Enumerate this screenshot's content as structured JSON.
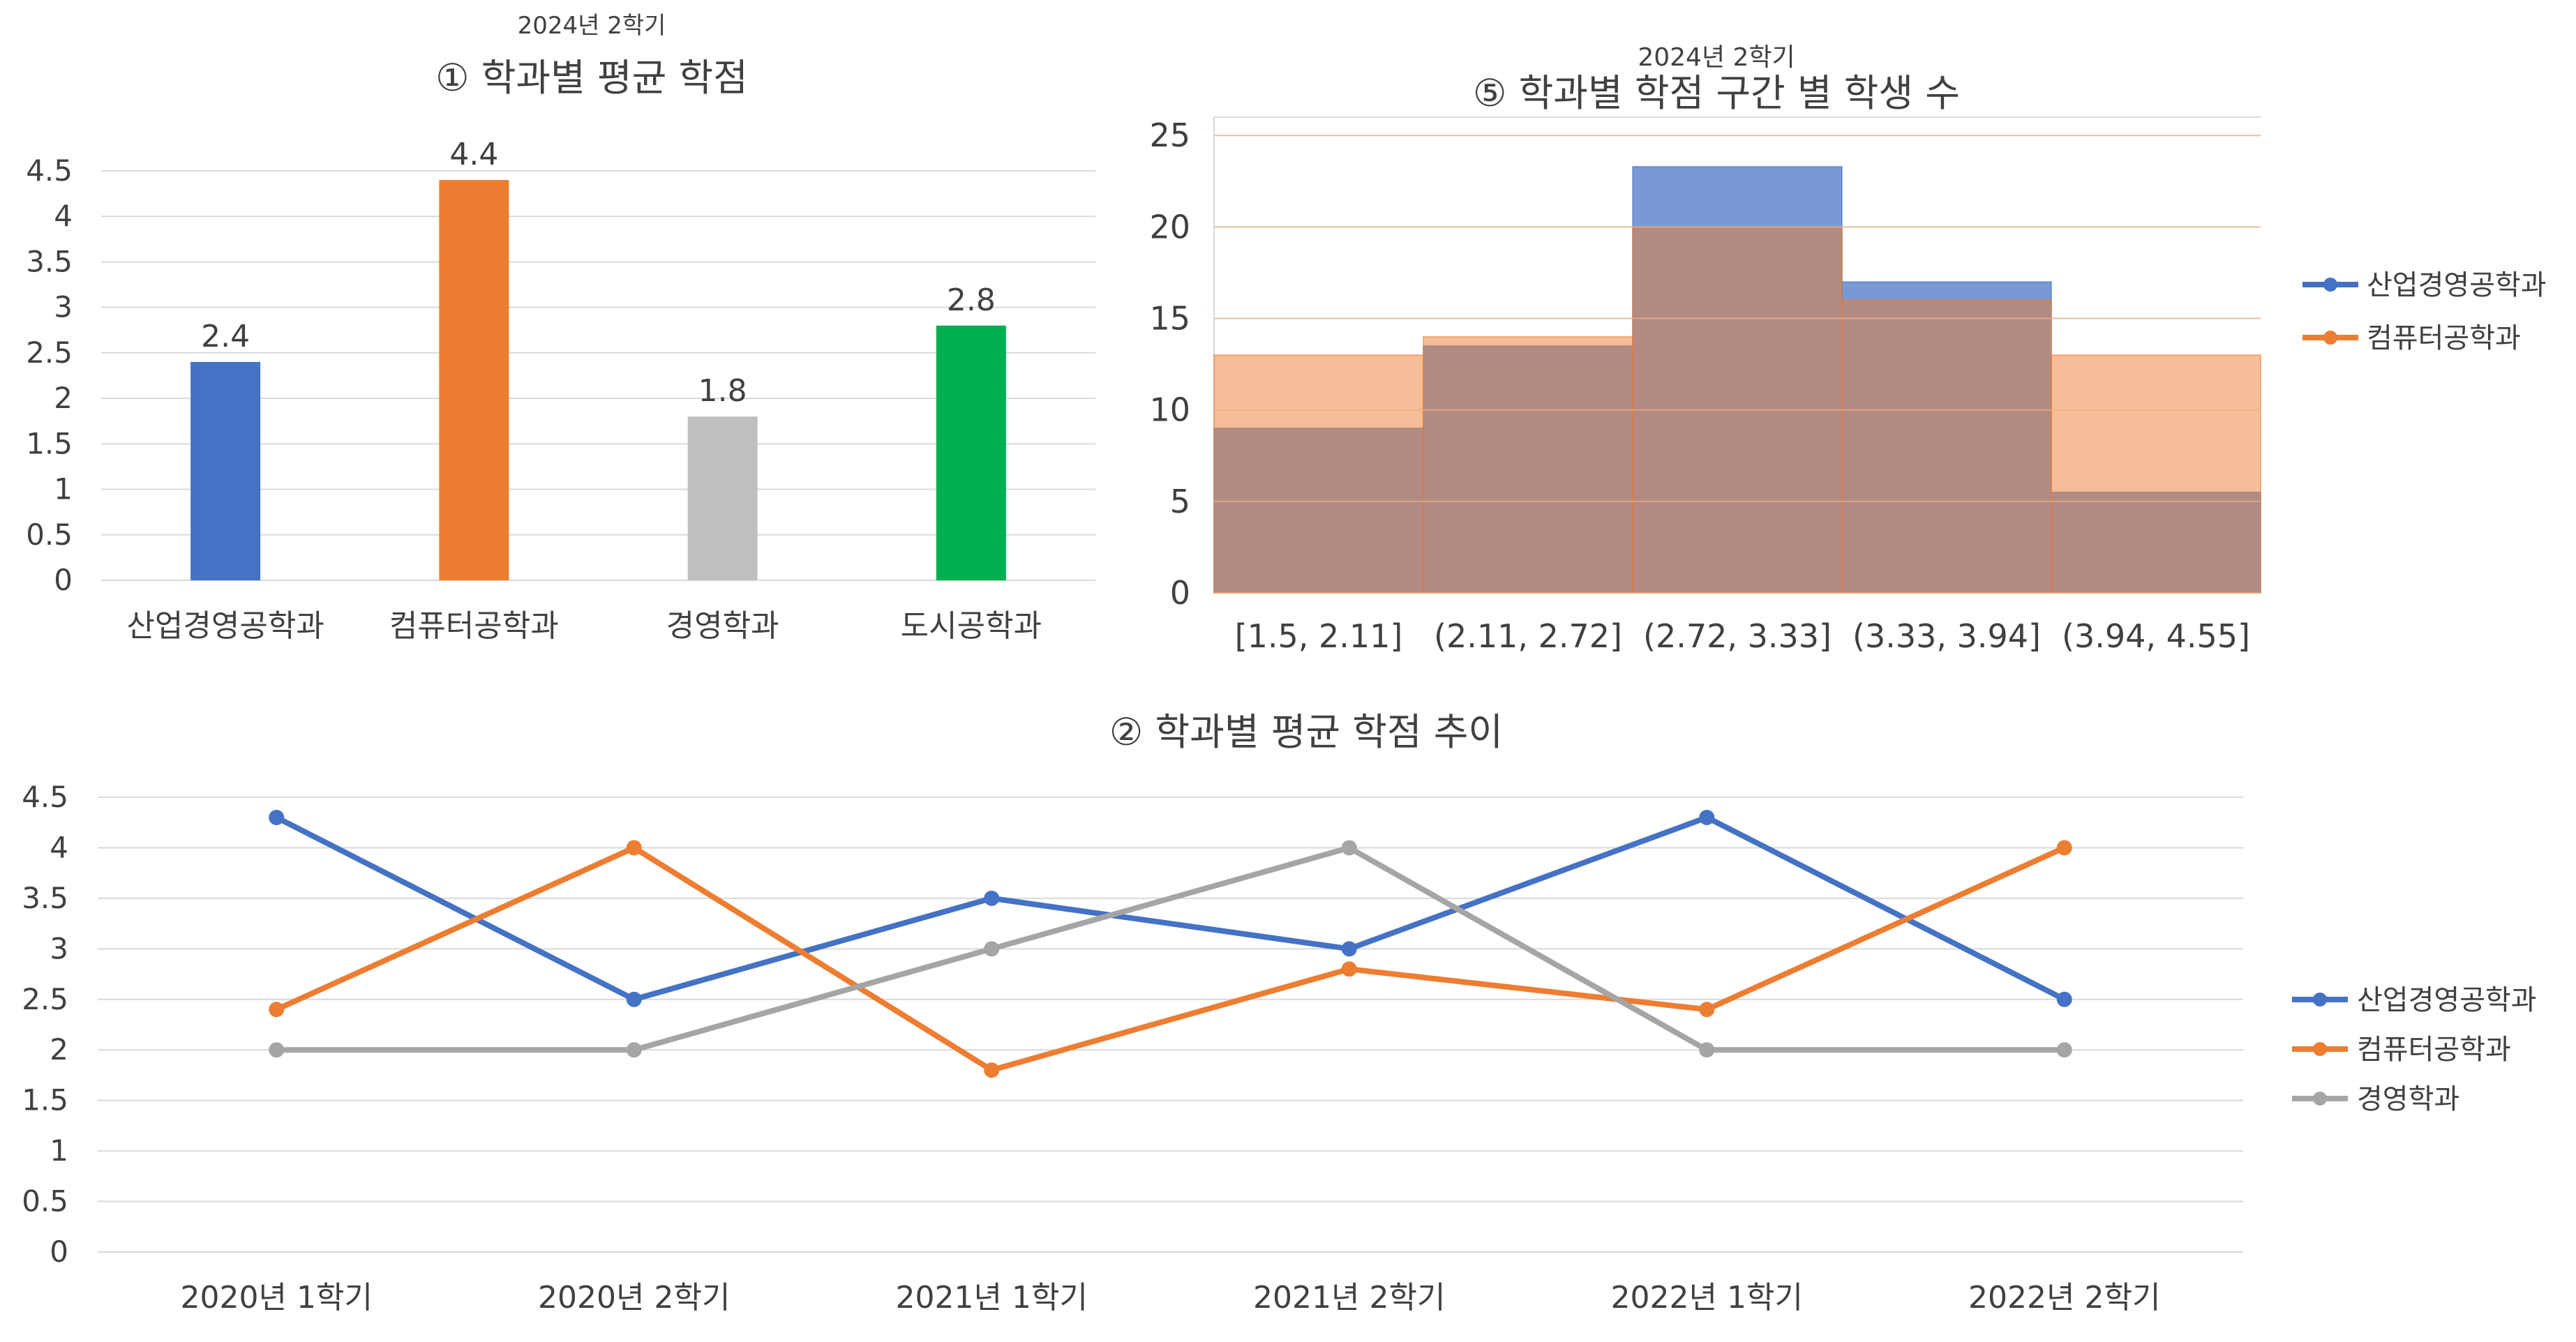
{
  "chart_data": [
    {
      "id": "bar",
      "type": "bar",
      "supertitle": "2024년 2학기",
      "title": "① 학과별 평균 학점",
      "categories": [
        "산업경영공학과",
        "컴퓨터공학과",
        "경영학과",
        "도시공학과"
      ],
      "values": [
        2.4,
        4.4,
        1.8,
        2.8
      ],
      "data_labels": [
        "2.4",
        "4.4",
        "1.8",
        "2.8"
      ],
      "colors": [
        "#4472C4",
        "#ED7D31",
        "#BFBFBF",
        "#00B050"
      ],
      "ylim": [
        0,
        4.5
      ],
      "yticks": [
        "0",
        "0.5",
        "1",
        "1.5",
        "2",
        "2.5",
        "3",
        "3.5",
        "4",
        "4.5"
      ],
      "grid": true,
      "legend": "none"
    },
    {
      "id": "hist",
      "type": "bar",
      "supertitle": "2024년 2학기",
      "title": "⑤ 학과별 학점 구간 별 학생 수",
      "categories": [
        "[1.5, 2.11]",
        "(2.11, 2.72]",
        "(2.72, 3.33]",
        "(3.33, 3.94]",
        "(3.94, 4.55]"
      ],
      "series": [
        {
          "name": "산업경영공학과",
          "values": [
            9,
            13.5,
            23.3,
            17,
            5.5
          ],
          "color": "#4472C4"
        },
        {
          "name": "컴퓨터공학과",
          "values": [
            13,
            14,
            20,
            16,
            13
          ],
          "color": "#ED7D31"
        }
      ],
      "ylim": [
        0,
        26
      ],
      "yticks": [
        "0",
        "5",
        "10",
        "15",
        "20",
        "25"
      ],
      "grid": true,
      "legend": "right"
    },
    {
      "id": "line",
      "type": "line",
      "title": "② 학과별 평균 학점 추이",
      "categories": [
        "2020년 1학기",
        "2020년 2학기",
        "2021년 1학기",
        "2021년 2학기",
        "2022년 1학기",
        "2022년 2학기"
      ],
      "series": [
        {
          "name": "산업경영공학과",
          "values": [
            4.3,
            2.5,
            3.5,
            3.0,
            4.3,
            2.5
          ],
          "color": "#4472C4"
        },
        {
          "name": "컴퓨터공학과",
          "values": [
            2.4,
            4.0,
            1.8,
            2.8,
            2.4,
            4.0
          ],
          "color": "#ED7D31"
        },
        {
          "name": "경영학과",
          "values": [
            2.0,
            2.0,
            3.0,
            4.0,
            2.0,
            2.0
          ],
          "color": "#A5A5A5"
        }
      ],
      "ylim": [
        0,
        4.5
      ],
      "yticks": [
        "0",
        "0.5",
        "1",
        "1.5",
        "2",
        "2.5",
        "3",
        "3.5",
        "4",
        "4.5"
      ],
      "grid": true,
      "legend": "right"
    }
  ]
}
